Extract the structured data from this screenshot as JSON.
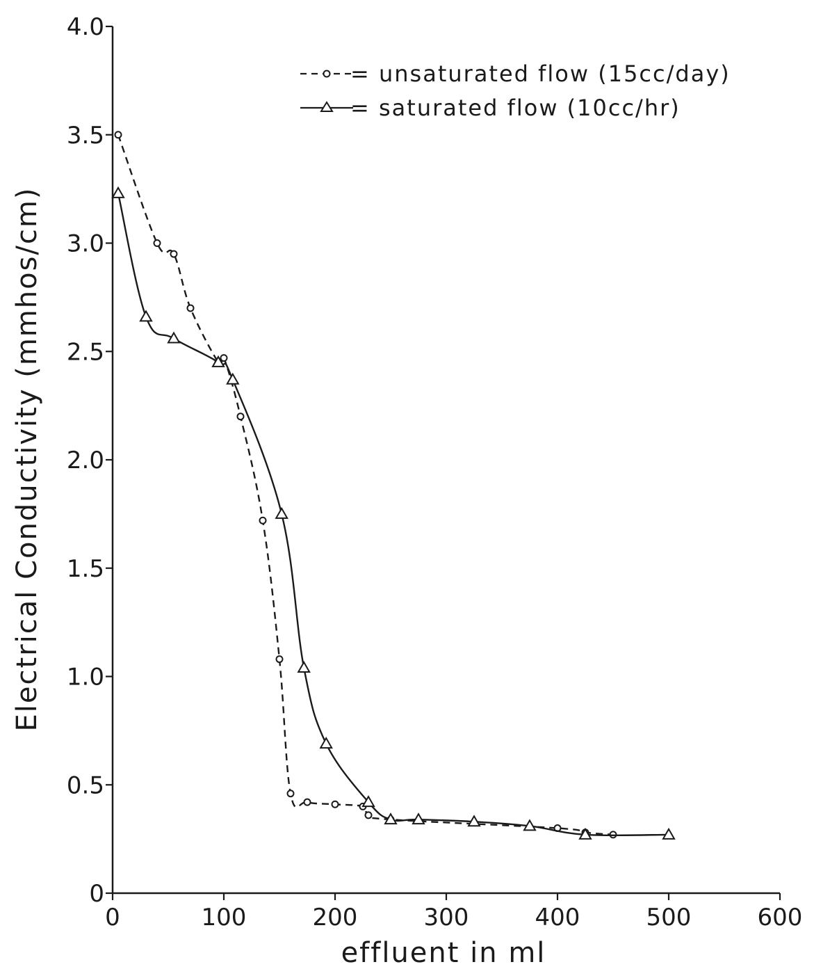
{
  "chart_data": {
    "type": "line",
    "xlabel": "effluent in ml",
    "ylabel": "Electrical Conductivity (mmhos/cm)",
    "xlim": [
      0,
      600
    ],
    "ylim": [
      0,
      4.0
    ],
    "x_ticks": [
      "0",
      "100",
      "200",
      "300",
      "400",
      "500",
      "600"
    ],
    "y_ticks": [
      "0",
      "0.5",
      "1.0",
      "1.5",
      "2.0",
      "2.5",
      "3.0",
      "3.5",
      "4.0"
    ],
    "grid": false,
    "legend_position": "top-right",
    "series": [
      {
        "name": "unsaturated flow (15cc/day)",
        "legend_label": "= unsaturated flow (15cc/day)",
        "line_style": "dashed",
        "marker": "circle",
        "x": [
          5,
          40,
          55,
          70,
          95,
          100,
          115,
          135,
          150,
          160,
          175,
          200,
          225,
          230,
          250,
          400,
          425,
          450
        ],
        "y": [
          3.5,
          3.0,
          2.95,
          2.7,
          2.45,
          2.47,
          2.2,
          1.72,
          1.08,
          0.46,
          0.42,
          0.41,
          0.4,
          0.36,
          0.34,
          0.3,
          0.28,
          0.27
        ]
      },
      {
        "name": "saturated flow (10cc/hr)",
        "legend_label": "= saturated flow (10cc/hr)",
        "line_style": "solid",
        "marker": "triangle",
        "x": [
          5,
          30,
          55,
          95,
          108,
          152,
          172,
          192,
          230,
          250,
          275,
          325,
          375,
          425,
          500
        ],
        "y": [
          3.23,
          2.66,
          2.56,
          2.45,
          2.37,
          1.75,
          1.04,
          0.69,
          0.42,
          0.34,
          0.34,
          0.33,
          0.31,
          0.27,
          0.27
        ]
      }
    ],
    "colors": {
      "ink": "#1a1a1a",
      "background": "#ffffff"
    }
  }
}
